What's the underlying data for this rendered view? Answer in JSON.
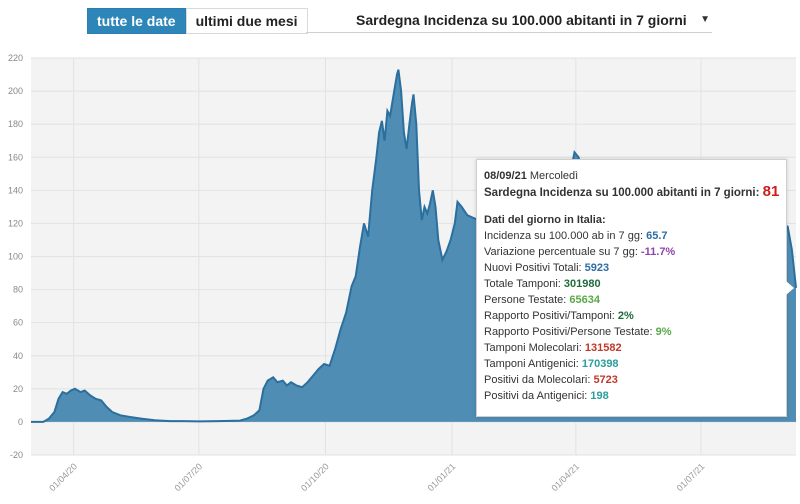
{
  "controls": {
    "btn_all": "tutte le date",
    "btn_two_months": "ultimi due mesi",
    "select_value": "Sardegna Incidenza su 100.000 abitanti in 7 giorni",
    "caret": "▼"
  },
  "tooltip": {
    "date": "08/09/21",
    "weekday": "Mercoledì",
    "main_label": "Sardegna Incidenza su 100.000 abitanti in 7 giorni:",
    "main_value": "81",
    "section": "Dati del giorno in Italia:",
    "rows": [
      {
        "label": "Incidenza su 100.000 ab in 7 gg:",
        "value": "65.7",
        "color": "#2e6da4"
      },
      {
        "label": "Variazione percentuale su 7 gg:",
        "value": "-11.7%",
        "color": "#8e44ad"
      },
      {
        "label": "Nuovi Positivi Totali:",
        "value": "5923",
        "color": "#2e6da4"
      },
      {
        "label": "Totale Tamponi:",
        "value": "301980",
        "color": "#1f6b3a"
      },
      {
        "label": "Persone Testate:",
        "value": "65634",
        "color": "#5aa84a"
      },
      {
        "label": "Rapporto Positivi/Tamponi:",
        "value": "2%",
        "color": "#1f6b3a"
      },
      {
        "label": "Rapporto Positivi/Persone Testate:",
        "value": "9%",
        "color": "#5aa84a"
      },
      {
        "label": "Tamponi Molecolari:",
        "value": "131582",
        "color": "#c0392b"
      },
      {
        "label": "Tamponi Antigenici:",
        "value": "170398",
        "color": "#2a9d9b"
      },
      {
        "label": "Positivi da Molecolari:",
        "value": "5723",
        "color": "#c0392b"
      },
      {
        "label": "Positivi da Antigenici:",
        "value": "198",
        "color": "#2a9d9b"
      }
    ]
  },
  "chart_data": {
    "type": "area",
    "series": [
      {
        "color": "#2a6f9e",
        "fill": "#4f8db5"
      }
    ],
    "ylim": [
      -20,
      220
    ],
    "y_ticks": [
      "-20",
      "0",
      "20",
      "40",
      "60",
      "80",
      "100",
      "120",
      "140",
      "160",
      "180",
      "200",
      "220"
    ],
    "x_ticks": [
      "01/04/20",
      "01/07/20",
      "01/10/20",
      "01/01/21",
      "01/04/21",
      "01/07/21"
    ],
    "x_start": "2020-03-01",
    "x_end": "2021-09-08",
    "grid": true,
    "points": [
      [
        "2020-03-01",
        0
      ],
      [
        "2020-03-10",
        0
      ],
      [
        "2020-03-14",
        2
      ],
      [
        "2020-03-18",
        6
      ],
      [
        "2020-03-21",
        14
      ],
      [
        "2020-03-24",
        18
      ],
      [
        "2020-03-27",
        17
      ],
      [
        "2020-03-30",
        19
      ],
      [
        "2020-04-02",
        20
      ],
      [
        "2020-04-06",
        18
      ],
      [
        "2020-04-09",
        19
      ],
      [
        "2020-04-13",
        16
      ],
      [
        "2020-04-17",
        14
      ],
      [
        "2020-04-21",
        13
      ],
      [
        "2020-04-25",
        9
      ],
      [
        "2020-04-29",
        6
      ],
      [
        "2020-05-05",
        4
      ],
      [
        "2020-05-12",
        3
      ],
      [
        "2020-05-20",
        2
      ],
      [
        "2020-05-30",
        1
      ],
      [
        "2020-06-10",
        0.5
      ],
      [
        "2020-06-20",
        0.5
      ],
      [
        "2020-07-01",
        0.3
      ],
      [
        "2020-07-15",
        0.5
      ],
      [
        "2020-07-31",
        0.8
      ],
      [
        "2020-08-05",
        2
      ],
      [
        "2020-08-10",
        4
      ],
      [
        "2020-08-14",
        7
      ],
      [
        "2020-08-17",
        20
      ],
      [
        "2020-08-20",
        25
      ],
      [
        "2020-08-24",
        27
      ],
      [
        "2020-08-27",
        24
      ],
      [
        "2020-08-31",
        25
      ],
      [
        "2020-09-03",
        22
      ],
      [
        "2020-09-06",
        24
      ],
      [
        "2020-09-10",
        22
      ],
      [
        "2020-09-14",
        21
      ],
      [
        "2020-09-18",
        24
      ],
      [
        "2020-09-22",
        28
      ],
      [
        "2020-09-26",
        32
      ],
      [
        "2020-09-30",
        35
      ],
      [
        "2020-10-04",
        34
      ],
      [
        "2020-10-08",
        44
      ],
      [
        "2020-10-12",
        56
      ],
      [
        "2020-10-16",
        66
      ],
      [
        "2020-10-20",
        82
      ],
      [
        "2020-10-23",
        88
      ],
      [
        "2020-10-26",
        105
      ],
      [
        "2020-10-29",
        120
      ],
      [
        "2020-11-01",
        112
      ],
      [
        "2020-11-04",
        140
      ],
      [
        "2020-11-07",
        160
      ],
      [
        "2020-11-09",
        175
      ],
      [
        "2020-11-11",
        182
      ],
      [
        "2020-11-13",
        170
      ],
      [
        "2020-11-15",
        188
      ],
      [
        "2020-11-17",
        185
      ],
      [
        "2020-11-20",
        200
      ],
      [
        "2020-11-22",
        210
      ],
      [
        "2020-11-23",
        213
      ],
      [
        "2020-11-25",
        200
      ],
      [
        "2020-11-27",
        175
      ],
      [
        "2020-11-29",
        165
      ],
      [
        "2020-12-01",
        180
      ],
      [
        "2020-12-03",
        193
      ],
      [
        "2020-12-04",
        198
      ],
      [
        "2020-12-06",
        180
      ],
      [
        "2020-12-08",
        140
      ],
      [
        "2020-12-10",
        122
      ],
      [
        "2020-12-12",
        130
      ],
      [
        "2020-12-14",
        126
      ],
      [
        "2020-12-16",
        132
      ],
      [
        "2020-12-18",
        140
      ],
      [
        "2020-12-20",
        130
      ],
      [
        "2020-12-22",
        110
      ],
      [
        "2020-12-25",
        98
      ],
      [
        "2020-12-28",
        103
      ],
      [
        "2020-12-31",
        110
      ],
      [
        "2021-01-03",
        120
      ],
      [
        "2021-01-05",
        133
      ],
      [
        "2021-01-08",
        130
      ],
      [
        "2021-01-12",
        125
      ],
      [
        "2021-01-20",
        122
      ],
      [
        "2021-02-01",
        115
      ],
      [
        "2021-02-15",
        110
      ],
      [
        "2021-03-01",
        118
      ],
      [
        "2021-03-10",
        125
      ],
      [
        "2021-03-20",
        135
      ],
      [
        "2021-03-28",
        150
      ],
      [
        "2021-03-31",
        163
      ],
      [
        "2021-04-03",
        160
      ],
      [
        "2021-04-08",
        140
      ],
      [
        "2021-04-20",
        120
      ],
      [
        "2021-05-05",
        100
      ],
      [
        "2021-05-20",
        75
      ],
      [
        "2021-06-05",
        50
      ],
      [
        "2021-06-20",
        30
      ],
      [
        "2021-07-05",
        10
      ],
      [
        "2021-07-15",
        6
      ],
      [
        "2021-07-25",
        20
      ],
      [
        "2021-08-01",
        60
      ],
      [
        "2021-08-10",
        95
      ],
      [
        "2021-08-20",
        115
      ],
      [
        "2021-08-28",
        120
      ],
      [
        "2021-09-02",
        118
      ],
      [
        "2021-09-05",
        104
      ],
      [
        "2021-09-08",
        81
      ]
    ]
  }
}
